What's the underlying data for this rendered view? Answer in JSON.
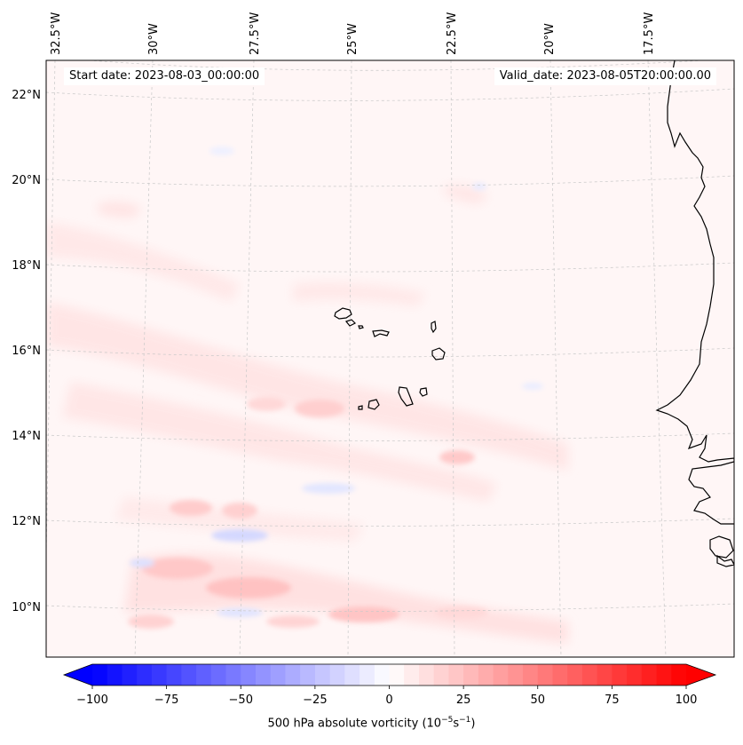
{
  "header": {
    "start_date": "Start date: 2023-08-03_00:00:00",
    "valid_date": "Valid_date: 2023-08-05T20:00:00.00"
  },
  "map": {
    "projection": "orthographic-like (curved graticule)",
    "extent": {
      "lon_min": -33.0,
      "lon_max": -16.0,
      "lat_min": 9.0,
      "lat_max": 23.0
    },
    "longitude_labels": [
      {
        "lon": -32.5,
        "text": "32.5°W"
      },
      {
        "lon": -30.0,
        "text": "30°W"
      },
      {
        "lon": -27.5,
        "text": "27.5°W"
      },
      {
        "lon": -25.0,
        "text": "25°W"
      },
      {
        "lon": -22.5,
        "text": "22.5°W"
      },
      {
        "lon": -20.0,
        "text": "20°W"
      },
      {
        "lon": -17.5,
        "text": "17.5°W"
      }
    ],
    "latitude_labels": [
      {
        "lat": 22,
        "text": "22°N"
      },
      {
        "lat": 20,
        "text": "20°N"
      },
      {
        "lat": 18,
        "text": "18°N"
      },
      {
        "lat": 16,
        "text": "16°N"
      },
      {
        "lat": 14,
        "text": "14°N"
      },
      {
        "lat": 12,
        "text": "12°N"
      },
      {
        "lat": 10,
        "text": "10°N"
      }
    ],
    "gridlines": true,
    "features": [
      "Cape Verde islands",
      "West African coastline (Mauritania, Senegal, Gambia, Guinea-Bissau)"
    ],
    "colors": {
      "coastline": "#000000",
      "gridline": "#c8c8c8",
      "background_field": "#fff5f5"
    }
  },
  "colorbar": {
    "label": "500 hPa absolute vorticity (10",
    "label_exp1": "−5",
    "label_mid": "s",
    "label_exp2": "−1",
    "label_end": ")",
    "min": -100,
    "max": 100,
    "extend": "both",
    "colormap": "bwr",
    "ticks": [
      {
        "value": -100,
        "text": "−100"
      },
      {
        "value": -75,
        "text": "−75"
      },
      {
        "value": -50,
        "text": "−50"
      },
      {
        "value": -25,
        "text": "−25"
      },
      {
        "value": 0,
        "text": "0"
      },
      {
        "value": 25,
        "text": "25"
      },
      {
        "value": 50,
        "text": "50"
      },
      {
        "value": 75,
        "text": "75"
      },
      {
        "value": 100,
        "text": "100"
      }
    ],
    "low_color": "#0000ff",
    "mid_color": "#ffffff",
    "high_color": "#ff0000"
  }
}
